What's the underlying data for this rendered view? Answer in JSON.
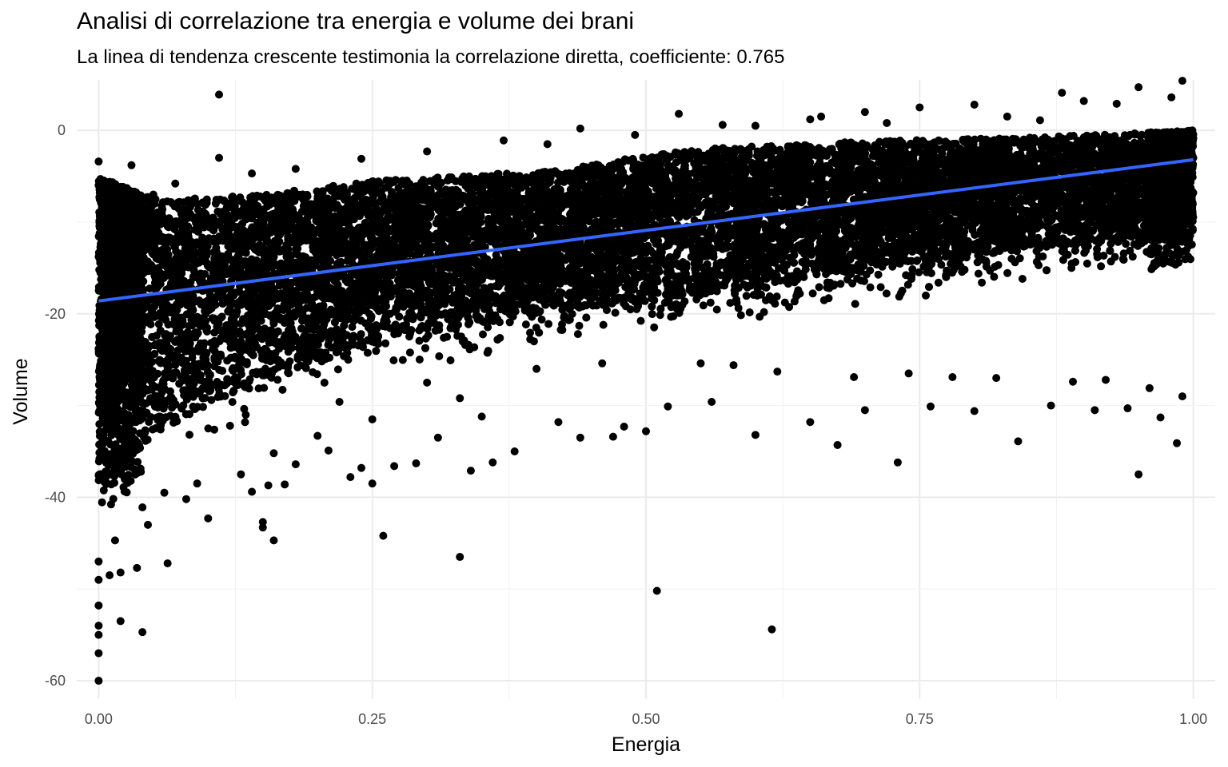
{
  "chart_data": {
    "type": "scatter",
    "title": "Analisi di correlazione tra energia e volume dei brani",
    "subtitle": "La linea di tendenza crescente testimonia la correlazione diretta, coefficiente:  0.765",
    "xlabel": "Energia",
    "ylabel": "Volume",
    "xlim": [
      -0.02,
      1.02
    ],
    "ylim": [
      -62,
      5.5
    ],
    "x_ticks": [
      0,
      0.25,
      0.5,
      0.75,
      1
    ],
    "x_tick_labels": [
      "0.00",
      "0.25",
      "0.50",
      "0.75",
      "1.00"
    ],
    "y_ticks": [
      0,
      -20,
      -40,
      -60
    ],
    "y_tick_labels": [
      "0",
      "-20",
      "-40",
      "-60"
    ],
    "grid": true,
    "point_color": "#000000",
    "trend_color": "#3366ff",
    "trend_line": {
      "x": [
        0,
        1
      ],
      "y": [
        -18.6,
        -3.2
      ]
    },
    "band": {
      "x": [
        0,
        0.05,
        0.15,
        0.25,
        0.4,
        0.55,
        0.7,
        0.85,
        1
      ],
      "upper": [
        -5,
        -7.5,
        -7,
        -5.5,
        -4.5,
        -2,
        -1.2,
        -0.8,
        0
      ],
      "lower": [
        -44,
        -37,
        -31,
        -27,
        -24,
        -22,
        -19,
        -17,
        -15
      ]
    },
    "points": [
      {
        "x": 0.11,
        "y": 3.9
      },
      {
        "x": 0.99,
        "y": 5.4
      },
      {
        "x": 0.88,
        "y": 4.1
      },
      {
        "x": 0.53,
        "y": 1.8
      },
      {
        "x": 0.44,
        "y": 0.2
      },
      {
        "x": 0.37,
        "y": -1.1
      },
      {
        "x": 0.03,
        "y": -3.8
      },
      {
        "x": 0.11,
        "y": -3.0
      },
      {
        "x": 0.14,
        "y": -4.7
      },
      {
        "x": 0.0,
        "y": -3.4
      },
      {
        "x": 0.01,
        "y": -6.0
      },
      {
        "x": 0.02,
        "y": -7.5
      },
      {
        "x": 0.0,
        "y": -60
      },
      {
        "x": 0.0,
        "y": -57
      },
      {
        "x": 0.0,
        "y": -55
      },
      {
        "x": 0.0,
        "y": -54
      },
      {
        "x": 0.0,
        "y": -51.8
      },
      {
        "x": 0.0,
        "y": -49
      },
      {
        "x": 0.0,
        "y": -47
      },
      {
        "x": 0.01,
        "y": -48.5
      },
      {
        "x": 0.02,
        "y": -53.5
      },
      {
        "x": 0.04,
        "y": -54.7
      },
      {
        "x": 0.02,
        "y": -48.2
      },
      {
        "x": 0.035,
        "y": -47.7
      },
      {
        "x": 0.063,
        "y": -47.2
      },
      {
        "x": 0.045,
        "y": -43
      },
      {
        "x": 0.015,
        "y": -44.7
      },
      {
        "x": 0.1,
        "y": -42.3
      },
      {
        "x": 0.15,
        "y": -42.7
      },
      {
        "x": 0.16,
        "y": -44.7
      },
      {
        "x": 0.15,
        "y": -43.3
      },
      {
        "x": 0.13,
        "y": -37.5
      },
      {
        "x": 0.14,
        "y": -39.4
      },
      {
        "x": 0.155,
        "y": -38.7
      },
      {
        "x": 0.17,
        "y": -38.6
      },
      {
        "x": 0.26,
        "y": -44.2
      },
      {
        "x": 0.33,
        "y": -46.5
      },
      {
        "x": 0.25,
        "y": -38.5
      },
      {
        "x": 0.23,
        "y": -37.8
      },
      {
        "x": 0.24,
        "y": -36.8
      },
      {
        "x": 0.27,
        "y": -36.6
      },
      {
        "x": 0.29,
        "y": -36.3
      },
      {
        "x": 0.34,
        "y": -37.1
      },
      {
        "x": 0.36,
        "y": -36.2
      },
      {
        "x": 0.38,
        "y": -35
      },
      {
        "x": 0.31,
        "y": -33.5
      },
      {
        "x": 0.44,
        "y": -33.5
      },
      {
        "x": 0.47,
        "y": -33.4
      },
      {
        "x": 0.5,
        "y": -32.8
      },
      {
        "x": 0.51,
        "y": -50.2
      },
      {
        "x": 0.615,
        "y": -54.4
      },
      {
        "x": 0.6,
        "y": -33.2
      },
      {
        "x": 0.675,
        "y": -34.3
      },
      {
        "x": 0.73,
        "y": -36.2
      },
      {
        "x": 0.84,
        "y": -33.9
      },
      {
        "x": 0.95,
        "y": -37.5
      },
      {
        "x": 0.985,
        "y": -34.1
      },
      {
        "x": 0.65,
        "y": -31.8
      },
      {
        "x": 0.7,
        "y": -30.5
      },
      {
        "x": 0.76,
        "y": -30.1
      },
      {
        "x": 0.8,
        "y": -30.6
      },
      {
        "x": 0.87,
        "y": -30.0
      },
      {
        "x": 0.91,
        "y": -30.5
      },
      {
        "x": 0.94,
        "y": -30.3
      },
      {
        "x": 0.97,
        "y": -31.3
      },
      {
        "x": 0.56,
        "y": -29.6
      },
      {
        "x": 0.52,
        "y": -30.1
      },
      {
        "x": 0.48,
        "y": -32.3
      },
      {
        "x": 0.42,
        "y": -31.8
      },
      {
        "x": 0.35,
        "y": -31.2
      },
      {
        "x": 0.2,
        "y": -33.3
      },
      {
        "x": 0.21,
        "y": -34.9
      },
      {
        "x": 0.18,
        "y": -36.4
      },
      {
        "x": 0.08,
        "y": -40.2
      },
      {
        "x": 0.06,
        "y": -39.5
      },
      {
        "x": 0.92,
        "y": -27.2
      },
      {
        "x": 0.96,
        "y": -28.1
      },
      {
        "x": 0.99,
        "y": -29.0
      },
      {
        "x": 0.89,
        "y": -27.4
      },
      {
        "x": 0.82,
        "y": -27.0
      },
      {
        "x": 0.78,
        "y": -26.9
      },
      {
        "x": 0.74,
        "y": -26.5
      },
      {
        "x": 0.69,
        "y": -26.9
      },
      {
        "x": 0.62,
        "y": -26.3
      },
      {
        "x": 0.58,
        "y": -25.6
      },
      {
        "x": 0.55,
        "y": -25.4
      },
      {
        "x": 0.46,
        "y": -25.4
      },
      {
        "x": 0.4,
        "y": -26.0
      },
      {
        "x": 0.3,
        "y": -27.5
      },
      {
        "x": 0.33,
        "y": -29.2
      },
      {
        "x": 0.22,
        "y": -29.6
      },
      {
        "x": 0.12,
        "y": -32.2
      },
      {
        "x": 0.25,
        "y": -31.5
      },
      {
        "x": 0.16,
        "y": -35.2
      },
      {
        "x": 0.04,
        "y": -41.1
      },
      {
        "x": 0.09,
        "y": -38.5
      },
      {
        "x": 0.57,
        "y": 0.6
      },
      {
        "x": 0.6,
        "y": 0.5
      },
      {
        "x": 0.65,
        "y": 1.2
      },
      {
        "x": 0.7,
        "y": 2.0
      },
      {
        "x": 0.75,
        "y": 2.5
      },
      {
        "x": 0.8,
        "y": 2.8
      },
      {
        "x": 0.83,
        "y": 1.5
      },
      {
        "x": 0.9,
        "y": 3.2
      },
      {
        "x": 0.95,
        "y": 4.7
      },
      {
        "x": 0.93,
        "y": 2.9
      },
      {
        "x": 0.98,
        "y": 3.6
      },
      {
        "x": 0.86,
        "y": 1.1
      },
      {
        "x": 0.72,
        "y": 0.8
      },
      {
        "x": 0.66,
        "y": 1.5
      },
      {
        "x": 0.49,
        "y": -0.5
      },
      {
        "x": 0.41,
        "y": -1.5
      },
      {
        "x": 0.3,
        "y": -2.3
      },
      {
        "x": 0.24,
        "y": -3.1
      },
      {
        "x": 0.18,
        "y": -4.2
      },
      {
        "x": 0.07,
        "y": -5.8
      },
      {
        "x": 0.05,
        "y": -7.0
      }
    ],
    "band_sample_count": 9000
  }
}
